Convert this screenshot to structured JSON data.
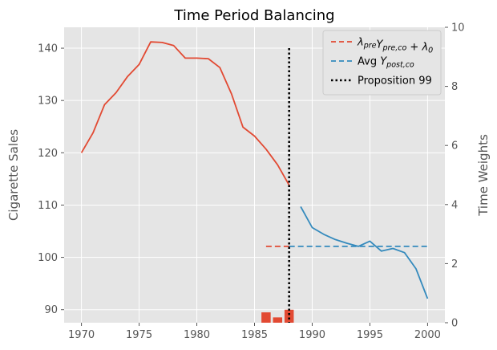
{
  "chart_data": {
    "type": "line",
    "title": "Time Period Balancing",
    "xlabel": "",
    "ylabel": "Cigarette Sales",
    "ylabel_right": "Time Weights",
    "xlim": [
      1968.5,
      2001.5
    ],
    "ylim": [
      87.5,
      144
    ],
    "ylim_right": [
      0,
      10
    ],
    "x_ticks": [
      1970,
      1975,
      1980,
      1985,
      1990,
      1995,
      2000
    ],
    "y_ticks": [
      90,
      100,
      110,
      120,
      130,
      140
    ],
    "y_ticks_right": [
      0,
      2,
      4,
      6,
      8,
      10
    ],
    "grid": true,
    "legend_position": "top-right",
    "series": [
      {
        "role": "pre",
        "color": "#e24a33",
        "x": [
          1970,
          1971,
          1972,
          1973,
          1974,
          1975,
          1976,
          1977,
          1978,
          1979,
          1980,
          1981,
          1982,
          1983,
          1984,
          1985,
          1986,
          1987,
          1988
        ],
        "values": [
          120.0,
          123.8,
          129.2,
          131.5,
          134.6,
          136.9,
          141.2,
          141.1,
          140.5,
          138.1,
          138.1,
          138.0,
          136.3,
          131.3,
          124.9,
          123.2,
          120.7,
          117.7,
          113.8
        ]
      },
      {
        "role": "post",
        "color": "#348abd",
        "x": [
          1989,
          1990,
          1991,
          1992,
          1993,
          1994,
          1995,
          1996,
          1997,
          1998,
          1999,
          2000
        ],
        "values": [
          109.7,
          105.7,
          104.4,
          103.4,
          102.7,
          102.1,
          103.1,
          101.2,
          101.7,
          100.9,
          97.8,
          92.1
        ]
      }
    ],
    "reference_lines": [
      {
        "label_id": "pre_ref",
        "color": "#e24a33",
        "y": 102.1,
        "x_from": 1986,
        "x_to": 1988
      },
      {
        "label_id": "post_avg",
        "color": "#348abd",
        "y": 102.1,
        "x_from": 1988,
        "x_to": 2000
      }
    ],
    "vertical_line": {
      "label_id": "prop99",
      "x": 1988,
      "y_from": 87.5,
      "y_to": 140,
      "color": "#000000"
    },
    "time_weights": {
      "color": "#e24a33",
      "axis": "right",
      "x": [
        1986,
        1987,
        1988
      ],
      "values": [
        0.35,
        0.18,
        0.44
      ]
    },
    "legend": [
      {
        "id": "pre_ref",
        "label": "λpreYpre,co + λ0",
        "style": "dashed",
        "color": "#e24a33"
      },
      {
        "id": "post_avg",
        "label": "Avg  Ypost,co",
        "style": "dashed",
        "color": "#348abd"
      },
      {
        "id": "prop99",
        "label": "Proposition 99",
        "style": "dotted",
        "color": "#000000"
      }
    ]
  }
}
